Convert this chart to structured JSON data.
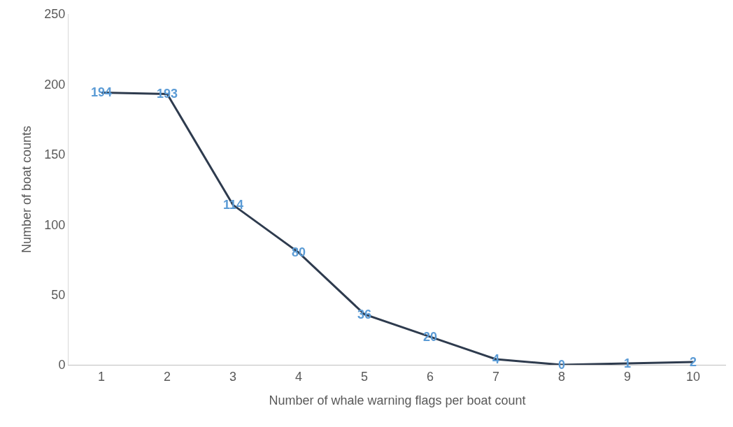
{
  "chart_data": {
    "type": "line",
    "xlabel": "Number of whale warning flags per boat count",
    "ylabel": "Number of boat counts",
    "categories": [
      "1",
      "2",
      "3",
      "4",
      "5",
      "6",
      "7",
      "8",
      "9",
      "10"
    ],
    "series": [
      {
        "color": "#2e3b4e",
        "values": [
          194,
          193,
          114,
          80,
          36,
          20,
          4,
          0,
          1,
          2
        ]
      }
    ],
    "ylim": [
      0,
      250
    ],
    "yticks": [
      0,
      50,
      100,
      150,
      200,
      250
    ],
    "grid": false,
    "line_style": "solid",
    "data_labels": true
  }
}
